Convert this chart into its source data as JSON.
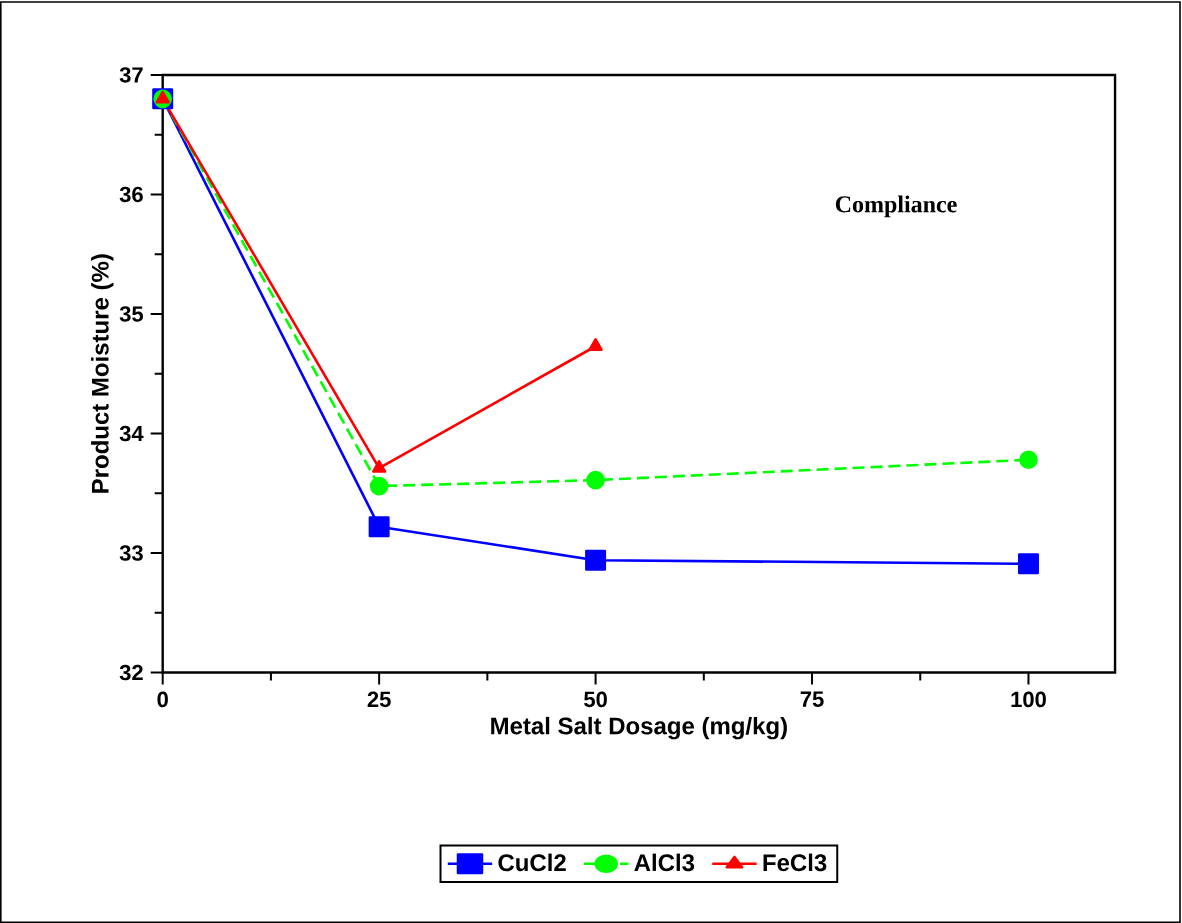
{
  "chart_data": {
    "type": "line",
    "xlabel": "Metal Salt Dosage (mg/kg)",
    "ylabel": "Product Moisture (%)",
    "annotations": [
      "Compliance"
    ],
    "xlim": [
      0,
      110
    ],
    "xticks": [
      0,
      25,
      50,
      75,
      100
    ],
    "ylim": [
      32,
      37
    ],
    "yticks": [
      32,
      33,
      34,
      35,
      36,
      37
    ],
    "grid": false,
    "legend": "bottom",
    "series": [
      {
        "name": "CuCl2",
        "color": "#0000ff",
        "marker": "square",
        "line_style": "solid",
        "x": [
          0,
          25,
          50,
          100
        ],
        "values": [
          36.8,
          33.22,
          32.94,
          32.91
        ]
      },
      {
        "name": "AlCl3",
        "color": "#00ff00",
        "marker": "circle",
        "line_style": "dashed",
        "x": [
          0,
          25,
          50,
          100
        ],
        "values": [
          36.8,
          33.56,
          33.61,
          33.78
        ]
      },
      {
        "name": "FeCl3",
        "color": "#ff0000",
        "marker": "triangle",
        "line_style": "solid",
        "x": [
          0,
          25,
          50
        ],
        "values": [
          36.8,
          33.71,
          34.73
        ]
      }
    ]
  }
}
